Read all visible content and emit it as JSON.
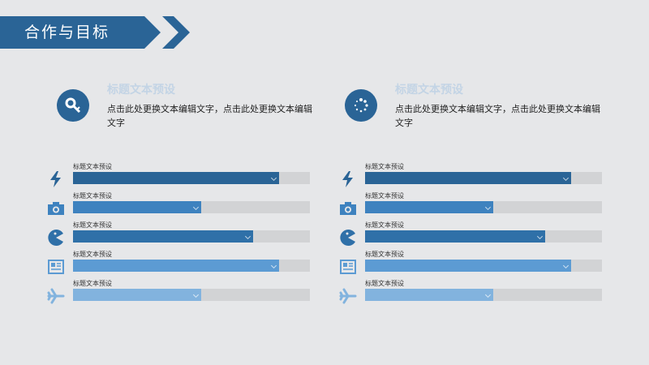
{
  "header": {
    "title": "合作与目标"
  },
  "features": [
    {
      "icon": "key-icon",
      "title": "标题文本预设",
      "desc": "点击此处更换文本编辑文字，点击此处更换文本编辑文字"
    },
    {
      "icon": "spinner-icon",
      "title": "标题文本预设",
      "desc": "点击此处更换文本编辑文字，点击此处更换文本编辑文字"
    }
  ],
  "bar_groups": [
    {
      "bars": [
        {
          "label": "标题文本预设",
          "icon": "lightning-icon",
          "value": 87,
          "color": "#2a6496"
        },
        {
          "label": "标题文本预设",
          "icon": "camera-icon",
          "value": 54,
          "color": "#3e82bf"
        },
        {
          "label": "标题文本预设",
          "icon": "pacman-icon",
          "value": 76,
          "color": "#2f70a8"
        },
        {
          "label": "标题文本预设",
          "icon": "newspaper-icon",
          "value": 87,
          "color": "#5c9bd3"
        },
        {
          "label": "标题文本预设",
          "icon": "airplane-icon",
          "value": 54,
          "color": "#82b3de"
        }
      ]
    },
    {
      "bars": [
        {
          "label": "标题文本预设",
          "icon": "lightning-icon",
          "value": 87,
          "color": "#2a6496"
        },
        {
          "label": "标题文本预设",
          "icon": "camera-icon",
          "value": 54,
          "color": "#3e82bf"
        },
        {
          "label": "标题文本预设",
          "icon": "pacman-icon",
          "value": 76,
          "color": "#2f70a8"
        },
        {
          "label": "标题文本预设",
          "icon": "newspaper-icon",
          "value": 87,
          "color": "#5c9bd3"
        },
        {
          "label": "标题文本预设",
          "icon": "airplane-icon",
          "value": 54,
          "color": "#82b3de"
        }
      ]
    }
  ]
}
